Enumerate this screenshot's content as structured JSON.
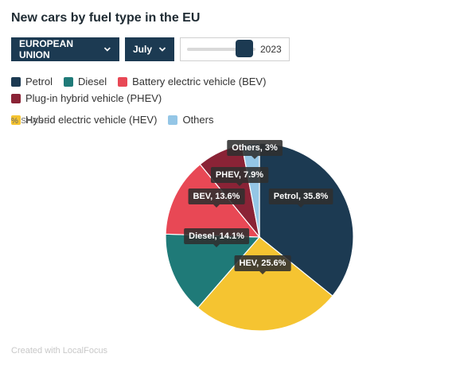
{
  "header": {
    "title": "New cars by fuel type in the EU"
  },
  "controls": {
    "region": "EUROPEAN UNION",
    "month": "July",
    "year": "2023",
    "year_fraction": 0.95
  },
  "axis_label": "% SHARE",
  "credit": "Created with LocalFocus",
  "legend": [
    {
      "label": "Petrol",
      "color": "#1c3a52"
    },
    {
      "label": "Diesel",
      "color": "#1f7a78"
    },
    {
      "label": "Battery electric vehicle (BEV)",
      "color": "#e84855"
    },
    {
      "label": "Plug-in hybrid vehicle (PHEV)",
      "color": "#8a2336"
    },
    {
      "label": "Hybrid electric vehicle (HEV)",
      "color": "#f5c431"
    },
    {
      "label": "Others",
      "color": "#94c6e6"
    }
  ],
  "chart_data": {
    "type": "pie",
    "unit": "%",
    "slices": [
      {
        "name": "Petrol",
        "value": 35.8,
        "label": "Petrol, 35.8%",
        "color": "#1c3a52"
      },
      {
        "name": "HEV",
        "value": 25.6,
        "label": "HEV, 25.6%",
        "color": "#f5c431"
      },
      {
        "name": "Diesel",
        "value": 14.1,
        "label": "Diesel, 14.1%",
        "color": "#1f7a78"
      },
      {
        "name": "BEV",
        "value": 13.6,
        "label": "BEV, 13.6%",
        "color": "#e84855"
      },
      {
        "name": "PHEV",
        "value": 7.9,
        "label": "PHEV, 7.9%",
        "color": "#8a2336"
      },
      {
        "name": "Others",
        "value": 3,
        "label": "Others, 3%",
        "color": "#94c6e6"
      }
    ]
  }
}
